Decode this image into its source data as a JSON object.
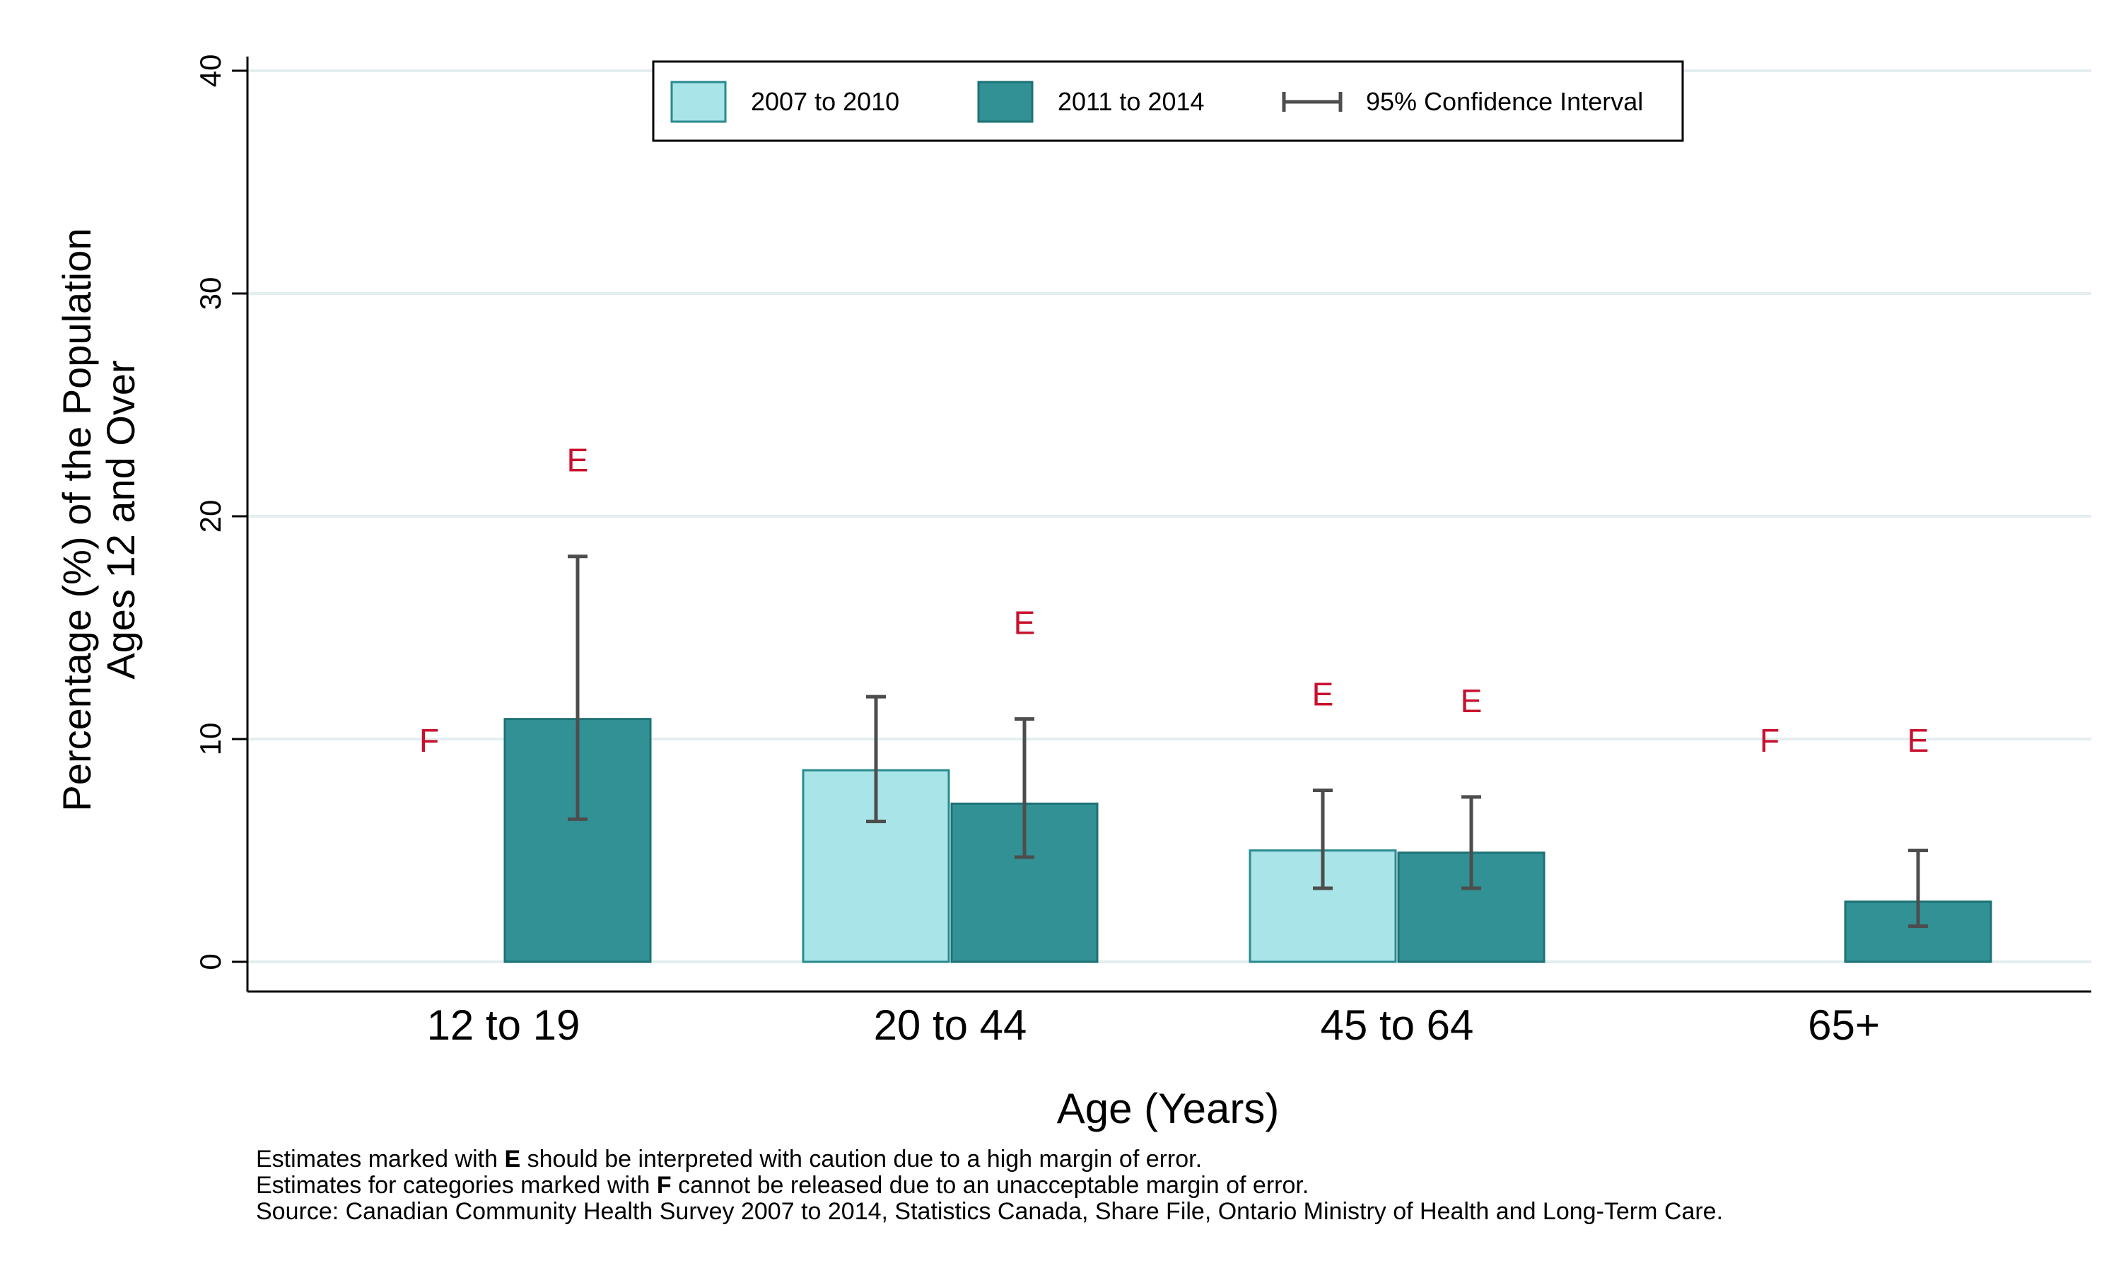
{
  "chart_data": {
    "type": "bar",
    "xlabel": "Age (Years)",
    "ylabel_line1": "Percentage (%) of the Population",
    "ylabel_line2": "Ages 12 and Over",
    "ylim": [
      0,
      40
    ],
    "yticks": [
      0,
      10,
      20,
      30,
      40
    ],
    "grid": true,
    "legend_position": "top-center",
    "categories": [
      "12 to 19",
      "20 to 44",
      "45 to 64",
      "65+"
    ],
    "series": [
      {
        "name": "2007 to 2010",
        "color": "#a8e4e8",
        "values": [
          null,
          8.6,
          5.0,
          null
        ],
        "ci_low": [
          null,
          6.3,
          3.3,
          null
        ],
        "ci_high": [
          null,
          11.9,
          7.7,
          null
        ],
        "flags": [
          "F",
          "",
          "E",
          "F"
        ]
      },
      {
        "name": "2011 to 2014",
        "color": "#329194",
        "values": [
          10.9,
          7.1,
          4.9,
          2.7
        ],
        "ci_low": [
          6.4,
          4.7,
          3.3,
          1.6
        ],
        "ci_high": [
          18.2,
          10.9,
          7.4,
          5.0
        ],
        "flags": [
          "E",
          "E",
          "E",
          "E"
        ]
      }
    ],
    "ci_legend_label": "95% Confidence Interval",
    "colors": {
      "ci": "#4d4d4d",
      "flag": "#c8102e",
      "grid": "#e4eef0",
      "axis": "#000000"
    }
  },
  "footnotes": {
    "line1_pre": "Estimates marked with ",
    "line1_flag": "E",
    "line1_post": " should be interpreted with caution due to a high margin of error.",
    "line2_pre": "Estimates for categories marked with ",
    "line2_flag": "F",
    "line2_post": " cannot be released due to an unacceptable margin of error.",
    "line3": "Source: Canadian Community Health Survey 2007 to 2014, Statistics Canada, Share File, Ontario Ministry of Health and Long-Term Care."
  }
}
